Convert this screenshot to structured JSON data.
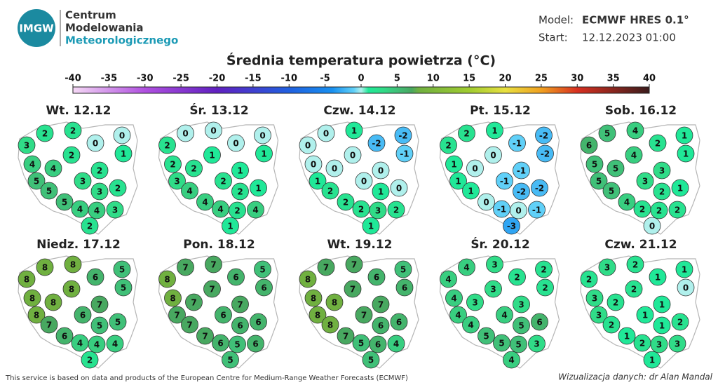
{
  "header": {
    "logo": "IMGW",
    "organization": [
      "Centrum",
      "Modelowania",
      "Meteorologicznego"
    ],
    "model_label": "Model:",
    "model": "ECMWF HRES 0.1°",
    "start_label": "Start:",
    "start": "12.12.2023 01:00"
  },
  "title": "Średnia temperatura powietrza (°C)",
  "colorbar": {
    "ticks": [
      -40,
      -35,
      -30,
      -25,
      -20,
      -15,
      -10,
      -5,
      0,
      5,
      10,
      15,
      20,
      25,
      30,
      35,
      40
    ]
  },
  "maps": [
    {
      "title": "Wt. 12.12",
      "values": [
        3,
        2,
        2,
        0,
        0,
        1,
        2,
        4,
        4,
        2,
        5,
        3,
        5,
        2,
        3,
        5,
        4,
        4,
        3,
        2
      ]
    },
    {
      "title": "Śr. 13.12",
      "values": [
        2,
        0,
        0,
        0,
        0,
        1,
        1,
        2,
        2,
        1,
        3,
        2,
        4,
        1,
        2,
        4,
        4,
        2,
        4,
        1
      ]
    },
    {
      "title": "Czw. 14.12",
      "values": [
        0,
        0,
        1,
        -2,
        -2,
        -1,
        0,
        0,
        0,
        0,
        1,
        0,
        2,
        0,
        1,
        2,
        2,
        3,
        2,
        1
      ]
    },
    {
      "title": "Pt. 15.12",
      "values": [
        2,
        2,
        1,
        -1,
        -2,
        -2,
        0,
        1,
        0,
        -1,
        1,
        -1,
        1,
        -2,
        -2,
        0,
        -1,
        0,
        -1,
        -3
      ]
    },
    {
      "title": "Sob. 16.12",
      "values": [
        6,
        5,
        4,
        2,
        1,
        1,
        4,
        5,
        5,
        3,
        5,
        3,
        5,
        1,
        2,
        4,
        2,
        2,
        2,
        0
      ]
    },
    {
      "title": "Niedz. 17.12",
      "values": [
        8,
        8,
        8,
        6,
        5,
        5,
        8,
        8,
        8,
        7,
        8,
        6,
        7,
        5,
        5,
        6,
        4,
        4,
        4,
        2
      ]
    },
    {
      "title": "Pon. 18.12",
      "values": [
        8,
        7,
        7,
        6,
        5,
        6,
        7,
        8,
        7,
        7,
        7,
        6,
        7,
        6,
        6,
        7,
        6,
        5,
        6,
        5
      ]
    },
    {
      "title": "Wt. 19.12",
      "values": [
        8,
        7,
        7,
        6,
        5,
        6,
        7,
        8,
        8,
        7,
        8,
        7,
        8,
        6,
        6,
        7,
        5,
        6,
        4,
        5
      ]
    },
    {
      "title": "Śr. 20.12",
      "values": [
        4,
        4,
        3,
        2,
        2,
        2,
        3,
        4,
        3,
        3,
        4,
        4,
        4,
        6,
        5,
        5,
        5,
        5,
        3,
        4
      ]
    },
    {
      "title": "Czw. 21.12",
      "values": [
        2,
        3,
        2,
        1,
        1,
        0,
        2,
        3,
        2,
        1,
        3,
        1,
        2,
        2,
        1,
        1,
        2,
        3,
        3,
        1
      ]
    }
  ],
  "footer": {
    "source": "This service is based on data and products of the European Centre for Medium-Range Weather Forecasts (ECMWF)",
    "credit": "Wizualizacja danych: dr Alan Mandal"
  }
}
